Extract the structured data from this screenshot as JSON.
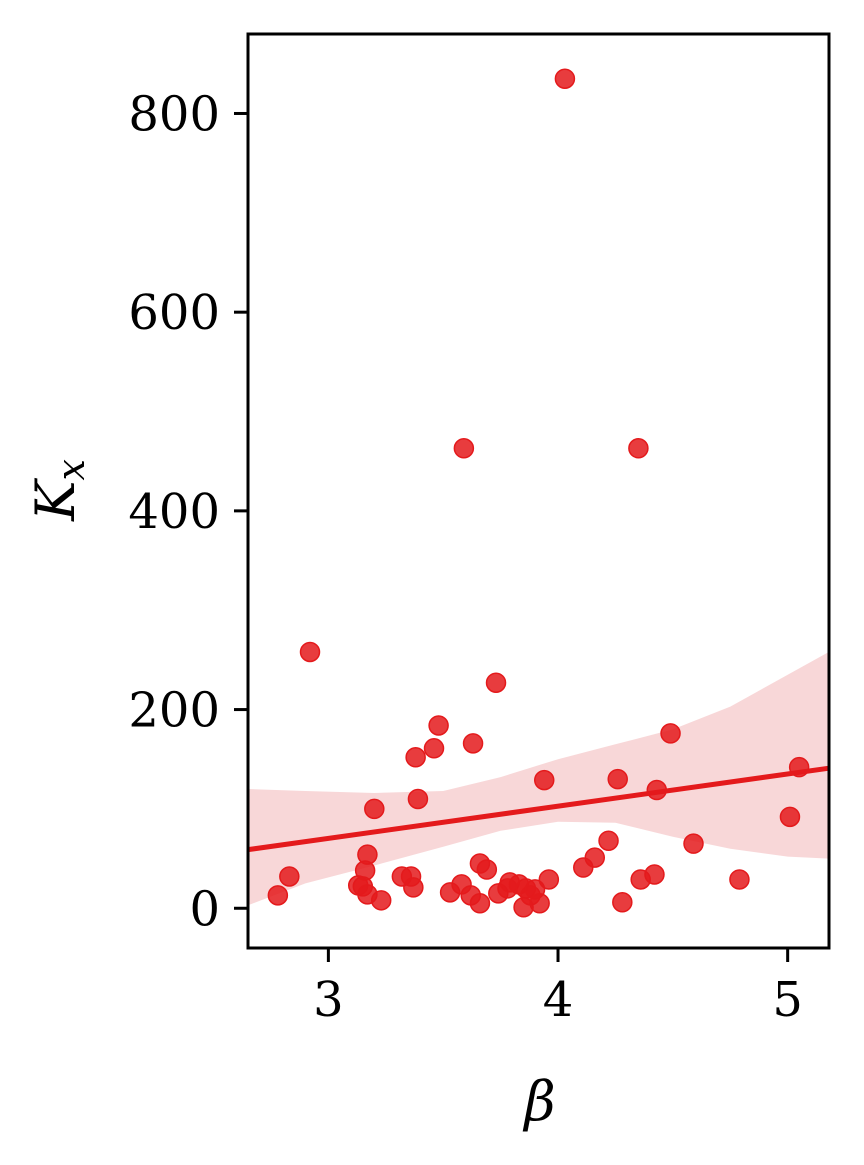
{
  "chart_data": {
    "type": "scatter",
    "title": "",
    "xlabel": "β",
    "ylabel_main": "K",
    "ylabel_sub": "x",
    "xlim": [
      2.65,
      5.18
    ],
    "ylim": [
      -40,
      880
    ],
    "xticks": [
      3,
      4,
      5
    ],
    "yticks": [
      0,
      200,
      400,
      600,
      800
    ],
    "grid": false,
    "legend": "none",
    "colors": {
      "points": "#e41a1c",
      "band": "#f4c2c3",
      "axis": "#000000"
    },
    "points": [
      {
        "x": 2.78,
        "y": 13
      },
      {
        "x": 2.83,
        "y": 32
      },
      {
        "x": 2.92,
        "y": 258
      },
      {
        "x": 3.13,
        "y": 23
      },
      {
        "x": 3.15,
        "y": 22
      },
      {
        "x": 3.16,
        "y": 38
      },
      {
        "x": 3.17,
        "y": 54
      },
      {
        "x": 3.17,
        "y": 14
      },
      {
        "x": 3.2,
        "y": 100
      },
      {
        "x": 3.23,
        "y": 8
      },
      {
        "x": 3.32,
        "y": 32
      },
      {
        "x": 3.36,
        "y": 32
      },
      {
        "x": 3.37,
        "y": 21
      },
      {
        "x": 3.38,
        "y": 152
      },
      {
        "x": 3.39,
        "y": 110
      },
      {
        "x": 3.46,
        "y": 161
      },
      {
        "x": 3.48,
        "y": 184
      },
      {
        "x": 3.53,
        "y": 16
      },
      {
        "x": 3.58,
        "y": 24
      },
      {
        "x": 3.59,
        "y": 463
      },
      {
        "x": 3.62,
        "y": 13
      },
      {
        "x": 3.63,
        "y": 166
      },
      {
        "x": 3.66,
        "y": 5
      },
      {
        "x": 3.66,
        "y": 45
      },
      {
        "x": 3.69,
        "y": 39
      },
      {
        "x": 3.73,
        "y": 227
      },
      {
        "x": 3.74,
        "y": 15
      },
      {
        "x": 3.78,
        "y": 20
      },
      {
        "x": 3.79,
        "y": 26
      },
      {
        "x": 3.83,
        "y": 24
      },
      {
        "x": 3.85,
        "y": 1
      },
      {
        "x": 3.86,
        "y": 20
      },
      {
        "x": 3.88,
        "y": 13
      },
      {
        "x": 3.9,
        "y": 19
      },
      {
        "x": 3.92,
        "y": 5
      },
      {
        "x": 3.94,
        "y": 129
      },
      {
        "x": 3.96,
        "y": 29
      },
      {
        "x": 4.03,
        "y": 835
      },
      {
        "x": 4.11,
        "y": 41
      },
      {
        "x": 4.16,
        "y": 51
      },
      {
        "x": 4.22,
        "y": 68
      },
      {
        "x": 4.26,
        "y": 130
      },
      {
        "x": 4.28,
        "y": 6
      },
      {
        "x": 4.35,
        "y": 463
      },
      {
        "x": 4.36,
        "y": 29
      },
      {
        "x": 4.42,
        "y": 34
      },
      {
        "x": 4.43,
        "y": 119
      },
      {
        "x": 4.49,
        "y": 176
      },
      {
        "x": 4.59,
        "y": 65
      },
      {
        "x": 4.79,
        "y": 29
      },
      {
        "x": 5.01,
        "y": 92
      },
      {
        "x": 5.05,
        "y": 142
      }
    ],
    "regression": {
      "x0": 2.65,
      "y0": 59,
      "x1": 5.18,
      "y1": 141
    },
    "confidence_band": {
      "x": [
        2.65,
        2.9,
        3.2,
        3.5,
        3.75,
        4.0,
        4.25,
        4.5,
        4.75,
        5.0,
        5.18
      ],
      "upper": [
        120,
        118,
        116,
        118,
        132,
        150,
        165,
        180,
        203,
        235,
        258
      ],
      "lower": [
        3,
        25,
        43,
        62,
        78,
        87,
        86,
        72,
        60,
        52,
        50
      ]
    }
  }
}
